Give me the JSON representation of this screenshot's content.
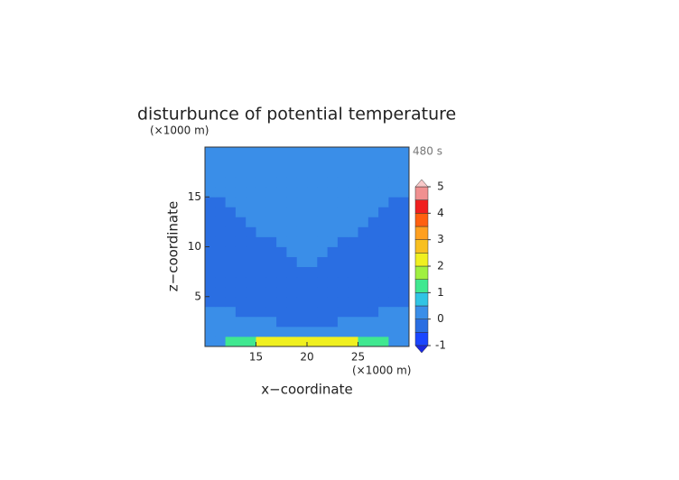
{
  "chart_data": {
    "type": "contour",
    "title": "disturbunce of potential temperature",
    "y_unit": "(×1000 m)",
    "x_unit": "(×1000 m)",
    "time_label": "480 s",
    "xlabel": "x−coordinate",
    "ylabel": "z−coordinate",
    "xlim": [
      10,
      30
    ],
    "ylim": [
      0,
      20
    ],
    "xticks": [
      15,
      20,
      25
    ],
    "yticks": [
      5,
      10,
      15
    ],
    "x": [
      10.5,
      11.5,
      12.5,
      13.5,
      14.5,
      15.5,
      16.5,
      17.5,
      18.5,
      19.5,
      20.5,
      21.5,
      22.5,
      23.5,
      24.5,
      25.5,
      26.5,
      27.5,
      28.5,
      29.5
    ],
    "y": [
      0.5,
      1.5,
      2.5,
      3.5,
      4.5,
      5.5,
      6.5,
      7.5,
      8.5,
      9.5,
      10.5,
      11.5,
      12.5,
      13.5,
      14.5,
      15.5,
      16.5,
      17.5,
      18.5,
      19.5
    ],
    "z": [
      [
        0.2,
        0.2,
        1.2,
        1.2,
        1.2,
        2.2,
        2.2,
        2.2,
        2.2,
        2.2,
        2.2,
        2.2,
        2.2,
        2.2,
        2.2,
        1.2,
        1.2,
        1.2,
        0.2,
        0.2
      ],
      [
        0.2,
        0.2,
        0.2,
        0.2,
        0.2,
        0.2,
        0.2,
        0.2,
        0.2,
        0.2,
        0.2,
        0.2,
        0.2,
        0.2,
        0.2,
        0.2,
        0.2,
        0.2,
        0.2,
        0.2
      ],
      [
        0.2,
        0.2,
        0.2,
        0.2,
        0.2,
        0.2,
        0.2,
        -0.2,
        -0.2,
        -0.2,
        -0.2,
        -0.2,
        -0.2,
        0.2,
        0.2,
        0.2,
        0.2,
        0.2,
        0.2,
        0.2
      ],
      [
        0.2,
        0.2,
        0.2,
        -0.2,
        -0.2,
        -0.2,
        -0.2,
        -0.2,
        -0.2,
        -0.2,
        -0.2,
        -0.2,
        -0.2,
        -0.2,
        -0.2,
        -0.2,
        -0.2,
        0.2,
        0.2,
        0.2
      ],
      [
        -0.2,
        -0.2,
        -0.2,
        -0.2,
        -0.2,
        -0.2,
        -0.2,
        -0.2,
        -0.2,
        -0.2,
        -0.2,
        -0.2,
        -0.2,
        -0.2,
        -0.2,
        -0.2,
        -0.2,
        -0.2,
        -0.2,
        -0.2
      ],
      [
        -0.2,
        -0.2,
        -0.2,
        -0.2,
        -0.2,
        -0.2,
        -0.2,
        -0.2,
        -0.2,
        -0.2,
        -0.2,
        -0.2,
        -0.2,
        -0.2,
        -0.2,
        -0.2,
        -0.2,
        -0.2,
        -0.2,
        -0.2
      ],
      [
        -0.2,
        -0.2,
        -0.2,
        -0.2,
        -0.2,
        -0.2,
        -0.2,
        -0.2,
        -0.2,
        -0.2,
        -0.2,
        -0.2,
        -0.2,
        -0.2,
        -0.2,
        -0.2,
        -0.2,
        -0.2,
        -0.2,
        -0.2
      ],
      [
        -0.2,
        -0.2,
        -0.2,
        -0.2,
        -0.2,
        -0.2,
        -0.2,
        -0.2,
        -0.2,
        -0.2,
        -0.2,
        -0.2,
        -0.2,
        -0.2,
        -0.2,
        -0.2,
        -0.2,
        -0.2,
        -0.2,
        -0.2
      ],
      [
        -0.2,
        -0.2,
        -0.2,
        -0.2,
        -0.2,
        -0.2,
        -0.2,
        -0.2,
        -0.2,
        0.2,
        0.2,
        -0.2,
        -0.2,
        -0.2,
        -0.2,
        -0.2,
        -0.2,
        -0.2,
        -0.2,
        -0.2
      ],
      [
        -0.2,
        -0.2,
        -0.2,
        -0.2,
        -0.2,
        -0.2,
        -0.2,
        -0.2,
        0.2,
        0.2,
        0.2,
        0.2,
        -0.2,
        -0.2,
        -0.2,
        -0.2,
        -0.2,
        -0.2,
        -0.2,
        -0.2
      ],
      [
        -0.2,
        -0.2,
        -0.2,
        -0.2,
        -0.2,
        -0.2,
        -0.2,
        0.2,
        0.2,
        0.2,
        0.2,
        0.2,
        0.2,
        -0.2,
        -0.2,
        -0.2,
        -0.2,
        -0.2,
        -0.2,
        -0.2
      ],
      [
        -0.2,
        -0.2,
        -0.2,
        -0.2,
        -0.2,
        0.2,
        0.2,
        0.2,
        0.2,
        0.2,
        0.2,
        0.2,
        0.2,
        0.2,
        0.2,
        -0.2,
        -0.2,
        -0.2,
        -0.2,
        -0.2
      ],
      [
        -0.2,
        -0.2,
        -0.2,
        -0.2,
        0.2,
        0.2,
        0.2,
        0.2,
        0.2,
        0.2,
        0.2,
        0.2,
        0.2,
        0.2,
        0.2,
        0.2,
        -0.2,
        -0.2,
        -0.2,
        -0.2
      ],
      [
        -0.2,
        -0.2,
        -0.2,
        0.2,
        0.2,
        0.2,
        0.2,
        0.2,
        0.2,
        0.2,
        0.2,
        0.2,
        0.2,
        0.2,
        0.2,
        0.2,
        0.2,
        -0.2,
        -0.2,
        -0.2
      ],
      [
        -0.2,
        -0.2,
        0.2,
        0.2,
        0.2,
        0.2,
        0.2,
        0.2,
        0.2,
        0.2,
        0.2,
        0.2,
        0.2,
        0.2,
        0.2,
        0.2,
        0.2,
        0.2,
        -0.2,
        -0.2
      ],
      [
        0.2,
        0.2,
        0.2,
        0.2,
        0.2,
        0.2,
        0.2,
        0.2,
        0.2,
        0.2,
        0.2,
        0.2,
        0.2,
        0.2,
        0.2,
        0.2,
        0.2,
        0.2,
        0.2,
        0.2
      ],
      [
        0.2,
        0.2,
        0.2,
        0.2,
        0.2,
        0.2,
        0.2,
        0.2,
        0.2,
        0.2,
        0.2,
        0.2,
        0.2,
        0.2,
        0.2,
        0.2,
        0.2,
        0.2,
        0.2,
        0.2
      ],
      [
        0.2,
        0.2,
        0.2,
        0.2,
        0.2,
        0.2,
        0.2,
        0.2,
        0.2,
        0.2,
        0.2,
        0.2,
        0.2,
        0.2,
        0.2,
        0.2,
        0.2,
        0.2,
        0.2,
        0.2
      ],
      [
        0.2,
        0.2,
        0.2,
        0.2,
        0.2,
        0.2,
        0.2,
        0.2,
        0.2,
        0.2,
        0.2,
        0.2,
        0.2,
        0.2,
        0.2,
        0.2,
        0.2,
        0.2,
        0.2,
        0.2
      ],
      [
        0.2,
        0.2,
        0.2,
        0.2,
        0.2,
        0.2,
        0.2,
        0.2,
        0.2,
        0.2,
        0.2,
        0.2,
        0.2,
        0.2,
        0.2,
        0.2,
        0.2,
        0.2,
        0.2,
        0.2
      ]
    ],
    "levels": [
      -1,
      -0.5,
      0,
      0.5,
      1,
      1.5,
      2,
      2.5,
      3,
      3.5,
      4,
      4.5,
      5
    ],
    "colors": [
      "#1a46ff",
      "#2a6ee2",
      "#3a8ee8",
      "#30c4e4",
      "#40e890",
      "#a0f040",
      "#f0f020",
      "#f8c020",
      "#ffa020",
      "#ff6010",
      "#f02020",
      "#f09090"
    ],
    "under_color": "#1a28e0",
    "over_color": "#f8c8c8",
    "cbar_ticks": [
      -1,
      0,
      1,
      2,
      3,
      4,
      5
    ]
  }
}
